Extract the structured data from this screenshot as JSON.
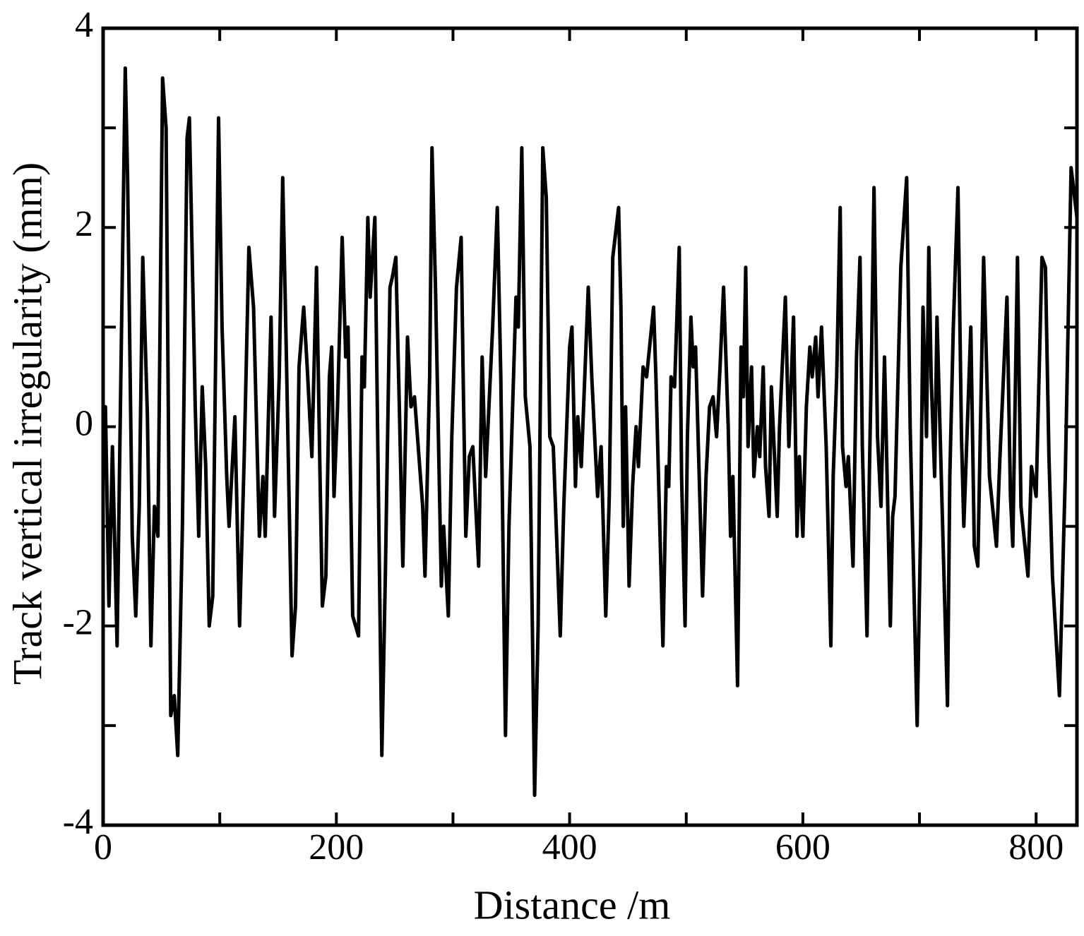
{
  "chart_data": {
    "type": "line",
    "xlabel": "Distance /m",
    "ylabel": "Track vertical  irregularity (mm)",
    "xlim": [
      0,
      835
    ],
    "ylim": [
      -4,
      4
    ],
    "xticks": [
      0,
      200,
      400,
      600,
      800
    ],
    "xticks_minor": [
      100,
      300,
      500,
      700
    ],
    "yticks": [
      -4,
      -2,
      0,
      2,
      4
    ],
    "yticks_minor": [
      -3,
      -1,
      1,
      3
    ],
    "x": [
      0,
      2,
      5,
      8,
      12,
      14,
      19,
      21,
      25,
      28,
      31,
      34,
      38,
      41,
      44,
      47,
      51,
      54,
      58,
      61,
      64,
      68,
      72,
      74,
      79,
      82,
      85,
      88,
      91,
      94,
      99,
      102,
      106,
      108,
      113,
      117,
      121,
      125,
      129,
      134,
      137,
      139,
      144,
      147,
      151,
      154,
      157,
      162,
      165,
      168,
      172,
      175,
      179,
      183,
      186,
      188,
      191,
      194,
      196,
      198,
      201,
      205,
      208,
      210,
      214,
      219,
      222,
      224,
      227,
      229,
      233,
      239,
      242,
      246,
      248,
      251,
      254,
      257,
      261,
      264,
      267,
      274,
      276,
      280,
      282,
      285,
      290,
      292,
      296,
      299,
      303,
      307,
      309,
      311,
      314,
      317,
      322,
      325,
      328,
      334,
      338,
      341,
      345,
      348,
      354,
      356,
      359,
      362,
      366,
      370,
      373,
      377,
      380,
      383,
      386,
      392,
      395,
      400,
      402,
      405,
      407,
      410,
      416,
      419,
      424,
      427,
      431,
      434,
      437,
      442,
      444,
      446,
      448,
      451,
      454,
      457,
      459,
      463,
      466,
      472,
      474,
      480,
      483,
      485,
      487,
      490,
      494,
      496,
      499,
      501,
      504,
      506,
      508,
      514,
      517,
      520,
      523,
      526,
      529,
      532,
      536,
      538,
      540,
      544,
      547,
      549,
      551,
      553,
      556,
      558,
      561,
      563,
      566,
      568,
      571,
      573,
      578,
      580,
      585,
      588,
      592,
      595,
      597,
      600,
      603,
      606,
      608,
      611,
      613,
      616,
      620,
      624,
      626,
      629,
      632,
      634,
      637,
      639,
      643,
      646,
      649,
      651,
      655,
      657,
      659,
      661,
      664,
      667,
      670,
      675,
      677,
      679,
      684,
      689,
      692,
      698,
      701,
      703,
      706,
      708,
      710,
      713,
      715,
      718,
      724,
      726,
      729,
      733,
      736,
      738,
      744,
      747,
      750,
      755,
      758,
      760,
      766,
      769,
      772,
      775,
      778,
      780,
      784,
      787,
      793,
      796,
      800,
      805,
      808,
      811,
      814,
      820,
      825,
      830,
      835
    ],
    "series": [
      {
        "color": "#000000",
        "values": [
          -0.5,
          0.2,
          -1.8,
          -0.2,
          -2.2,
          -0.5,
          3.6,
          2.5,
          -1.1,
          -1.9,
          -0.8,
          1.7,
          0.1,
          -2.2,
          -0.8,
          -1.1,
          3.5,
          3.0,
          -2.9,
          -2.7,
          -3.3,
          -1.0,
          2.9,
          3.1,
          0.2,
          -1.1,
          0.4,
          -0.4,
          -2.0,
          -1.7,
          3.1,
          1.0,
          -0.5,
          -1.0,
          0.1,
          -2.0,
          -0.3,
          1.8,
          1.2,
          -1.1,
          -0.5,
          -1.1,
          1.1,
          -0.9,
          0.5,
          2.5,
          0.8,
          -2.3,
          -1.8,
          0.6,
          1.2,
          0.6,
          -0.3,
          1.6,
          -0.5,
          -1.8,
          -1.5,
          0.5,
          0.8,
          -0.7,
          0.2,
          1.9,
          0.7,
          1.0,
          -1.9,
          -2.1,
          0.7,
          0.4,
          2.1,
          1.3,
          2.1,
          -3.3,
          -1.5,
          1.4,
          1.5,
          1.7,
          0.2,
          -1.4,
          0.9,
          0.2,
          0.3,
          -0.8,
          -1.5,
          0.5,
          2.8,
          1.4,
          -1.6,
          -1.0,
          -1.9,
          -0.1,
          1.4,
          1.9,
          0.3,
          -1.1,
          -0.3,
          -0.2,
          -1.4,
          0.7,
          -0.5,
          1.0,
          2.2,
          0.5,
          -3.1,
          -1.0,
          1.3,
          1.0,
          2.8,
          0.3,
          -0.2,
          -3.7,
          -2.0,
          2.8,
          2.3,
          -0.1,
          -0.2,
          -2.1,
          -0.8,
          0.8,
          1.0,
          -0.6,
          0.1,
          -0.4,
          1.4,
          0.5,
          -0.7,
          -0.2,
          -1.9,
          -0.7,
          1.7,
          2.2,
          1.2,
          -1.0,
          0.2,
          -1.6,
          -0.6,
          0.0,
          -0.4,
          0.6,
          0.5,
          1.2,
          0.5,
          -2.2,
          -0.4,
          -0.6,
          0.5,
          0.4,
          1.8,
          -0.5,
          -2.0,
          -0.1,
          1.1,
          0.6,
          0.8,
          -1.7,
          -0.5,
          0.2,
          0.3,
          -0.1,
          0.6,
          1.4,
          0.0,
          -1.1,
          -0.5,
          -2.6,
          0.8,
          0.3,
          1.6,
          -0.2,
          0.6,
          -0.5,
          0.0,
          -0.3,
          0.6,
          -0.4,
          -0.9,
          0.4,
          -0.9,
          0.0,
          1.3,
          -0.2,
          1.1,
          -1.1,
          -0.3,
          -1.1,
          0.2,
          0.8,
          0.5,
          0.9,
          0.3,
          1.0,
          -0.2,
          -2.2,
          -0.5,
          0.5,
          2.2,
          -0.2,
          -0.6,
          -0.3,
          -1.4,
          0.7,
          1.7,
          -0.2,
          -2.1,
          -0.5,
          0.8,
          2.4,
          -0.1,
          -0.8,
          0.7,
          -2.0,
          -0.9,
          -0.7,
          1.6,
          2.5,
          0.0,
          -3.0,
          -1.0,
          1.2,
          -0.1,
          1.8,
          0.5,
          -0.5,
          1.1,
          -0.2,
          -2.8,
          -0.5,
          1.0,
          2.4,
          -0.1,
          -1.0,
          1.0,
          -1.2,
          -1.4,
          1.7,
          0.4,
          -0.5,
          -1.2,
          -0.3,
          0.5,
          1.3,
          -0.7,
          -1.2,
          1.7,
          -0.8,
          -1.5,
          -0.4,
          -0.7,
          1.7,
          1.6,
          -0.3,
          -1.5,
          -2.7,
          -0.5,
          2.6,
          2.1
        ]
      }
    ]
  }
}
